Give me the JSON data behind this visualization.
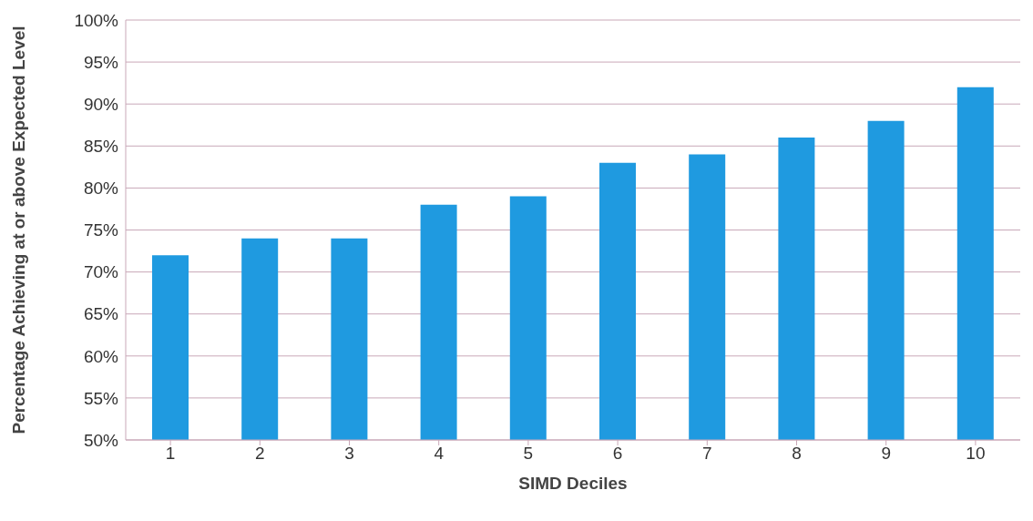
{
  "chart_data": {
    "type": "bar",
    "xlabel": "SIMD Deciles",
    "ylabel": "Percentage Achieving at or above Expected Level",
    "categories": [
      "1",
      "2",
      "3",
      "4",
      "5",
      "6",
      "7",
      "8",
      "9",
      "10"
    ],
    "values": [
      72,
      74,
      74,
      78,
      79,
      83,
      84,
      86,
      88,
      92
    ],
    "color": "#1f9ae0",
    "ylim": [
      50,
      100
    ],
    "yticks": [
      {
        "value": 50,
        "label": "50%"
      },
      {
        "value": 55,
        "label": "55%"
      },
      {
        "value": 60,
        "label": "60%"
      },
      {
        "value": 65,
        "label": "65%"
      },
      {
        "value": 70,
        "label": "70%"
      },
      {
        "value": 75,
        "label": "75%"
      },
      {
        "value": 80,
        "label": "80%"
      },
      {
        "value": 85,
        "label": "85%"
      },
      {
        "value": 90,
        "label": "90%"
      },
      {
        "value": 95,
        "label": "95%"
      },
      {
        "value": 100,
        "label": "100%"
      }
    ],
    "grid": "y",
    "legend": false
  }
}
